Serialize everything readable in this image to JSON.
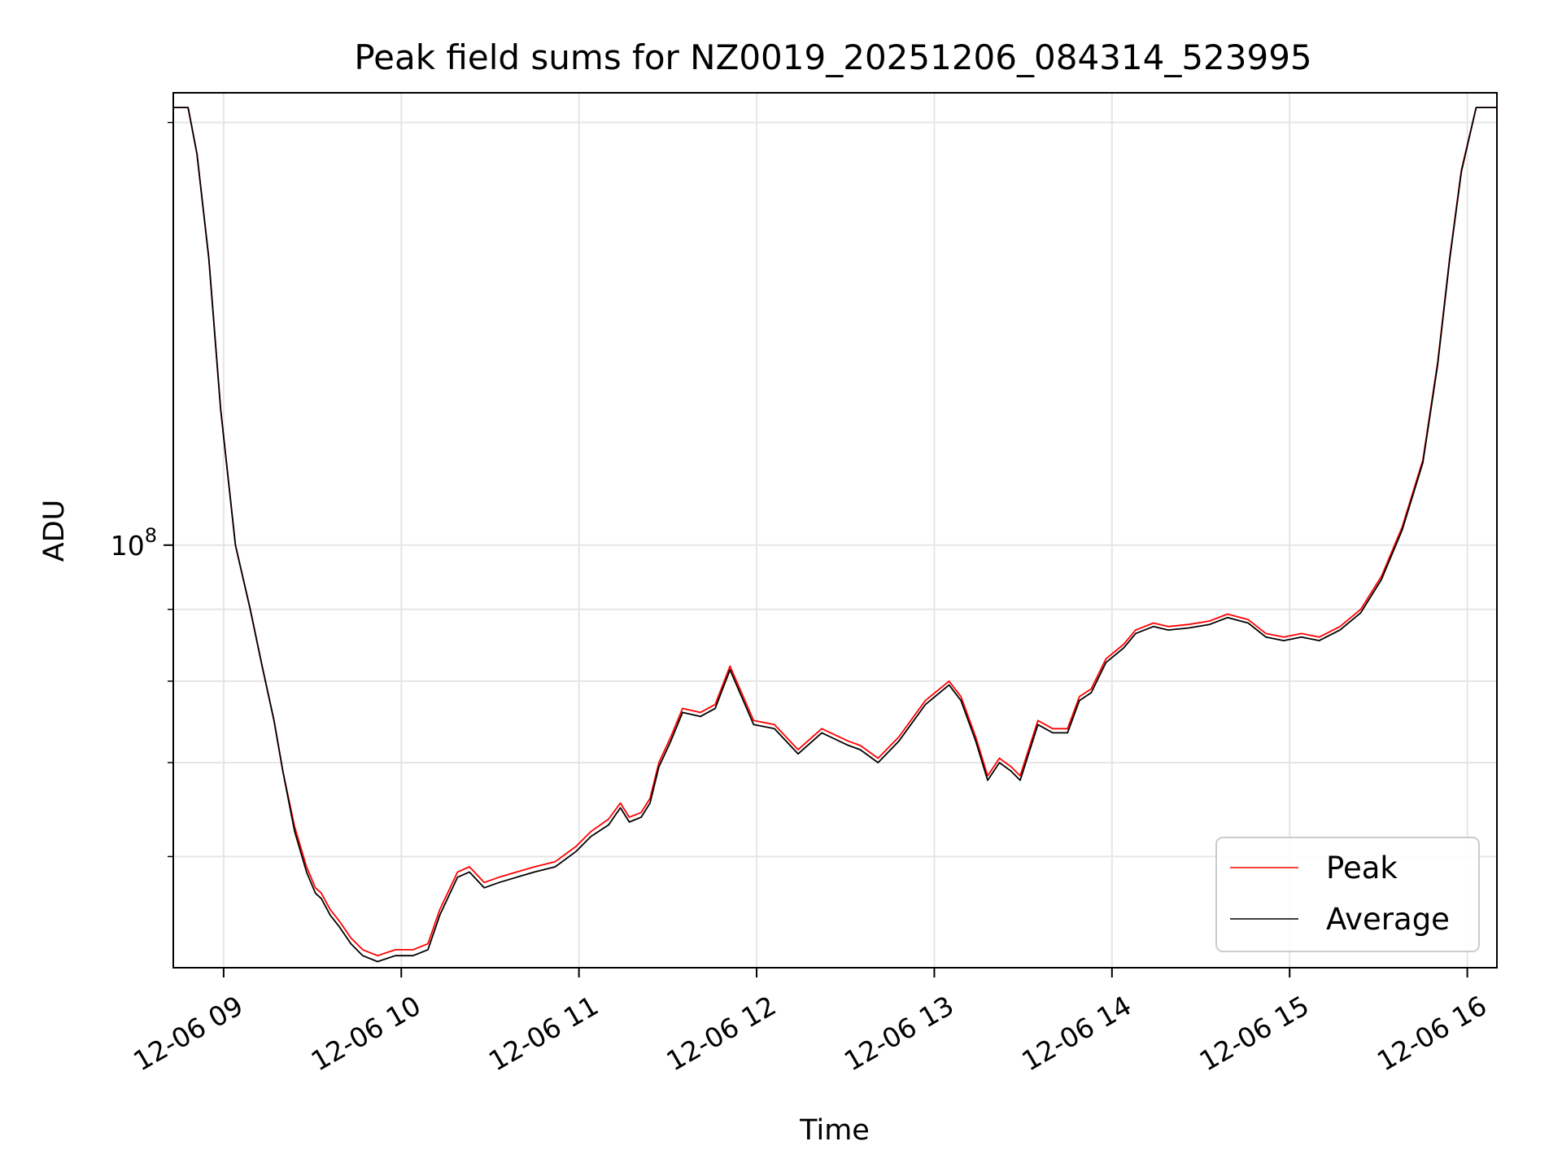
{
  "chart_data": {
    "type": "line",
    "title": "Peak field sums for NZ0019_20251206_084314_523995",
    "xlabel": "Time",
    "ylabel": "ADU",
    "y_scale": "log",
    "xlim": [
      "2025-12-06 08:43",
      "2025-12-06 16:10"
    ],
    "ylim": [
      50000000,
      210000000
    ],
    "grid": true,
    "legend_position": "lower right",
    "x_ticks": [
      "12-06 09",
      "12-06 10",
      "12-06 11",
      "12-06 12",
      "12-06 13",
      "12-06 14",
      "12-06 15",
      "12-06 16"
    ],
    "x_tick_rotation": 30,
    "y_ticks": [
      {
        "value": 100000000,
        "base": "10",
        "exponent": "8"
      }
    ],
    "y_minor_ticks": [
      60000000,
      70000000,
      80000000,
      90000000,
      200000000
    ],
    "series": [
      {
        "name": "Peak",
        "color": "#ff0000",
        "x": [
          "2025-12-06 08:43",
          "2025-12-06 08:48",
          "2025-12-06 08:51",
          "2025-12-06 08:55",
          "2025-12-06 08:59",
          "2025-12-06 09:04",
          "2025-12-06 09:09",
          "2025-12-06 09:13",
          "2025-12-06 09:17",
          "2025-12-06 09:20",
          "2025-12-06 09:24",
          "2025-12-06 09:28",
          "2025-12-06 09:31",
          "2025-12-06 09:33",
          "2025-12-06 09:36",
          "2025-12-06 09:39",
          "2025-12-06 09:43",
          "2025-12-06 09:47",
          "2025-12-06 09:52",
          "2025-12-06 09:58",
          "2025-12-06 10:04",
          "2025-12-06 10:09",
          "2025-12-06 10:13",
          "2025-12-06 10:19",
          "2025-12-06 10:23",
          "2025-12-06 10:28",
          "2025-12-06 10:33",
          "2025-12-06 10:39",
          "2025-12-06 10:45",
          "2025-12-06 10:52",
          "2025-12-06 10:59",
          "2025-12-06 11:04",
          "2025-12-06 11:10",
          "2025-12-06 11:14",
          "2025-12-06 11:17",
          "2025-12-06 11:21",
          "2025-12-06 11:24",
          "2025-12-06 11:27",
          "2025-12-06 11:31",
          "2025-12-06 11:35",
          "2025-12-06 11:41",
          "2025-12-06 11:46",
          "2025-12-06 11:51",
          "2025-12-06 11:59",
          "2025-12-06 12:06",
          "2025-12-06 12:14",
          "2025-12-06 12:22",
          "2025-12-06 12:31",
          "2025-12-06 12:35",
          "2025-12-06 12:41",
          "2025-12-06 12:48",
          "2025-12-06 12:57",
          "2025-12-06 13:05",
          "2025-12-06 13:09",
          "2025-12-06 13:14",
          "2025-12-06 13:18",
          "2025-12-06 13:22",
          "2025-12-06 13:26",
          "2025-12-06 13:29",
          "2025-12-06 13:35",
          "2025-12-06 13:40",
          "2025-12-06 13:45",
          "2025-12-06 13:49",
          "2025-12-06 13:53",
          "2025-12-06 13:58",
          "2025-12-06 14:04",
          "2025-12-06 14:08",
          "2025-12-06 14:14",
          "2025-12-06 14:19",
          "2025-12-06 14:26",
          "2025-12-06 14:33",
          "2025-12-06 14:39",
          "2025-12-06 14:46",
          "2025-12-06 14:52",
          "2025-12-06 14:58",
          "2025-12-06 15:04",
          "2025-12-06 15:10",
          "2025-12-06 15:17",
          "2025-12-06 15:24",
          "2025-12-06 15:31",
          "2025-12-06 15:38",
          "2025-12-06 15:45",
          "2025-12-06 15:50",
          "2025-12-06 15:54",
          "2025-12-06 15:58",
          "2025-12-06 16:03",
          "2025-12-06 16:10"
        ],
        "y": [
          205000000,
          205000000,
          190000000,
          160000000,
          125000000,
          100000000,
          90000000,
          82000000,
          75000000,
          69000000,
          63000000,
          59000000,
          57000000,
          56500000,
          55000000,
          54000000,
          52500000,
          51500000,
          51000000,
          51500000,
          51500000,
          52000000,
          55000000,
          58500000,
          59000000,
          57500000,
          58000000,
          58500000,
          59000000,
          59500000,
          61000000,
          62500000,
          63800000,
          65500000,
          64000000,
          64500000,
          66000000,
          70000000,
          73000000,
          76500000,
          76000000,
          77000000,
          82000000,
          75000000,
          74500000,
          71500000,
          74000000,
          72500000,
          72000000,
          70500000,
          73000000,
          77500000,
          80000000,
          78000000,
          73000000,
          68500000,
          70500000,
          69500000,
          68500000,
          75000000,
          74000000,
          74000000,
          78000000,
          79000000,
          83000000,
          85000000,
          87000000,
          88000000,
          87500000,
          87800000,
          88300000,
          89300000,
          88500000,
          86500000,
          86000000,
          86500000,
          86000000,
          87500000,
          90000000,
          95000000,
          103000000,
          115000000,
          135000000,
          160000000,
          185000000,
          205000000,
          205000000
        ]
      },
      {
        "name": "Average",
        "color": "#000000",
        "x": [
          "2025-12-06 08:43",
          "2025-12-06 08:48",
          "2025-12-06 08:51",
          "2025-12-06 08:55",
          "2025-12-06 08:59",
          "2025-12-06 09:04",
          "2025-12-06 09:09",
          "2025-12-06 09:13",
          "2025-12-06 09:17",
          "2025-12-06 09:20",
          "2025-12-06 09:24",
          "2025-12-06 09:28",
          "2025-12-06 09:31",
          "2025-12-06 09:33",
          "2025-12-06 09:36",
          "2025-12-06 09:39",
          "2025-12-06 09:43",
          "2025-12-06 09:47",
          "2025-12-06 09:52",
          "2025-12-06 09:58",
          "2025-12-06 10:04",
          "2025-12-06 10:09",
          "2025-12-06 10:13",
          "2025-12-06 10:19",
          "2025-12-06 10:23",
          "2025-12-06 10:28",
          "2025-12-06 10:33",
          "2025-12-06 10:39",
          "2025-12-06 10:45",
          "2025-12-06 10:52",
          "2025-12-06 10:59",
          "2025-12-06 11:04",
          "2025-12-06 11:10",
          "2025-12-06 11:14",
          "2025-12-06 11:17",
          "2025-12-06 11:21",
          "2025-12-06 11:24",
          "2025-12-06 11:27",
          "2025-12-06 11:31",
          "2025-12-06 11:35",
          "2025-12-06 11:41",
          "2025-12-06 11:46",
          "2025-12-06 11:51",
          "2025-12-06 11:59",
          "2025-12-06 12:06",
          "2025-12-06 12:14",
          "2025-12-06 12:22",
          "2025-12-06 12:31",
          "2025-12-06 12:35",
          "2025-12-06 12:41",
          "2025-12-06 12:48",
          "2025-12-06 12:57",
          "2025-12-06 13:05",
          "2025-12-06 13:09",
          "2025-12-06 13:14",
          "2025-12-06 13:18",
          "2025-12-06 13:22",
          "2025-12-06 13:26",
          "2025-12-06 13:29",
          "2025-12-06 13:35",
          "2025-12-06 13:40",
          "2025-12-06 13:45",
          "2025-12-06 13:49",
          "2025-12-06 13:53",
          "2025-12-06 13:58",
          "2025-12-06 14:04",
          "2025-12-06 14:08",
          "2025-12-06 14:14",
          "2025-12-06 14:19",
          "2025-12-06 14:26",
          "2025-12-06 14:33",
          "2025-12-06 14:39",
          "2025-12-06 14:46",
          "2025-12-06 14:52",
          "2025-12-06 14:58",
          "2025-12-06 15:04",
          "2025-12-06 15:10",
          "2025-12-06 15:17",
          "2025-12-06 15:24",
          "2025-12-06 15:31",
          "2025-12-06 15:38",
          "2025-12-06 15:45",
          "2025-12-06 15:50",
          "2025-12-06 15:54",
          "2025-12-06 15:58",
          "2025-12-06 16:03",
          "2025-12-06 16:10"
        ],
        "y": [
          205000000,
          205000000,
          190000000,
          160000000,
          125000000,
          100000000,
          90000000,
          82000000,
          75000000,
          69000000,
          62500000,
          58500000,
          56500000,
          56000000,
          54500000,
          53500000,
          52000000,
          51000000,
          50500000,
          51000000,
          51000000,
          51500000,
          54500000,
          58000000,
          58500000,
          57000000,
          57500000,
          58000000,
          58500000,
          59000000,
          60500000,
          62000000,
          63200000,
          65000000,
          63500000,
          64000000,
          65500000,
          69500000,
          72500000,
          76000000,
          75500000,
          76500000,
          81500000,
          74500000,
          74000000,
          71000000,
          73500000,
          72000000,
          71500000,
          70000000,
          72500000,
          77000000,
          79500000,
          77500000,
          72500000,
          68000000,
          70000000,
          69000000,
          68000000,
          74500000,
          73500000,
          73500000,
          77500000,
          78500000,
          82500000,
          84500000,
          86500000,
          87500000,
          87000000,
          87300000,
          87800000,
          88800000,
          88000000,
          86000000,
          85500000,
          86000000,
          85500000,
          87000000,
          89500000,
          94500000,
          102500000,
          114500000,
          134500000,
          159500000,
          184500000,
          205000000,
          205000000
        ]
      }
    ]
  }
}
